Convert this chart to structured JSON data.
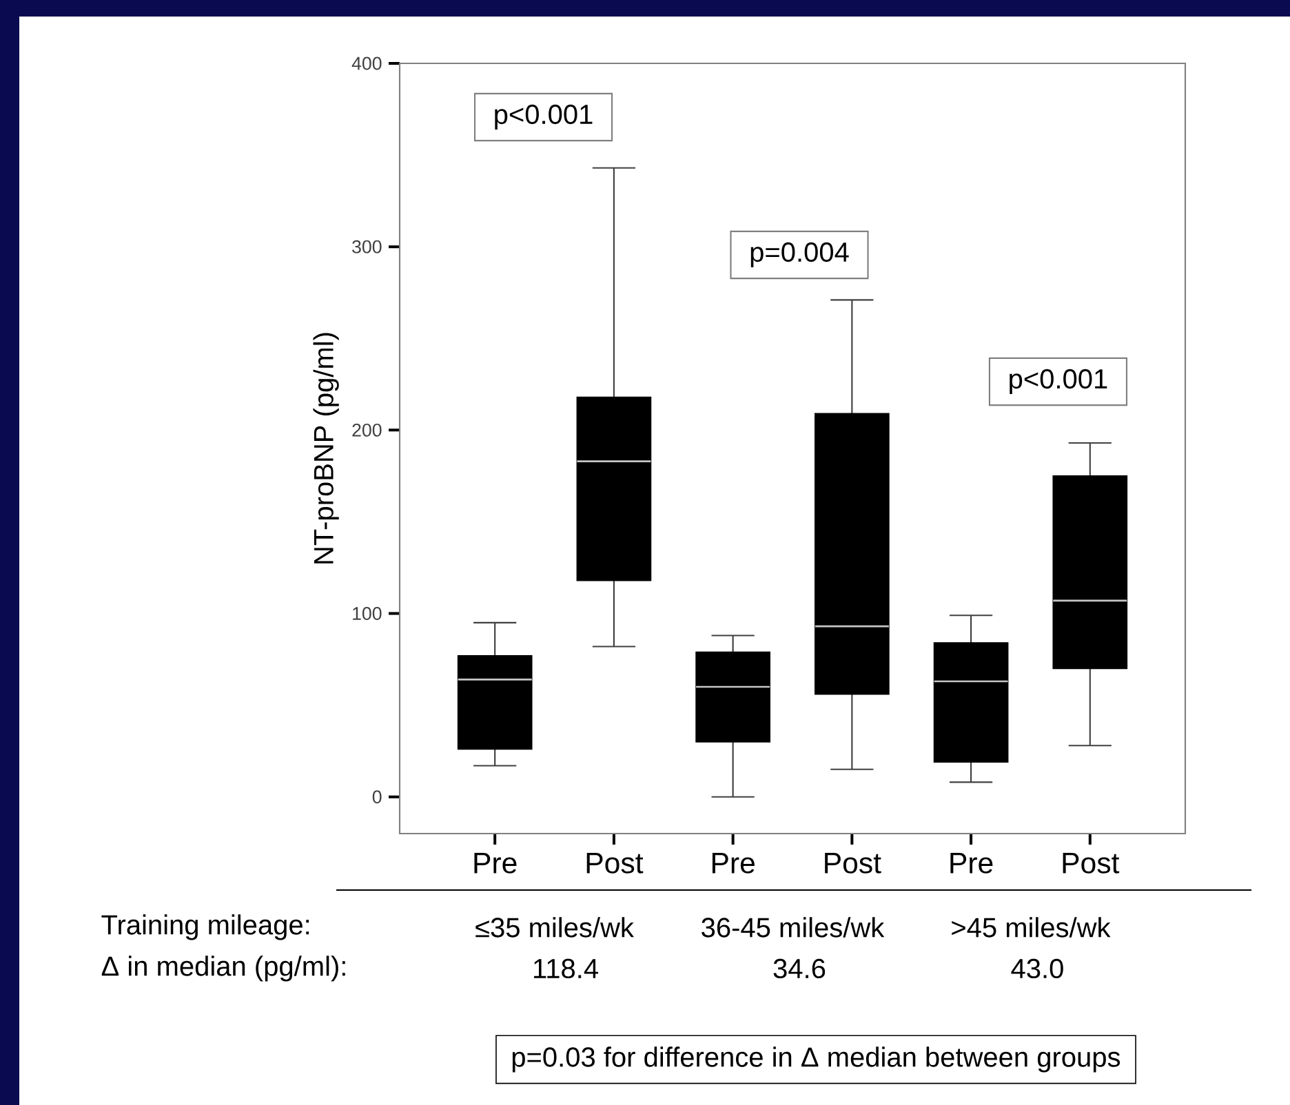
{
  "chart_data": {
    "type": "box",
    "categories": [
      "Pre",
      "Post",
      "Pre",
      "Post",
      "Pre",
      "Post"
    ],
    "boxes": [
      {
        "low": 17,
        "q1": 26,
        "median": 64,
        "q3": 77,
        "high": 95
      },
      {
        "low": 82,
        "q1": 118,
        "median": 183,
        "q3": 218,
        "high": 343
      },
      {
        "low": 0,
        "q1": 30,
        "median": 60,
        "q3": 79,
        "high": 88
      },
      {
        "low": 15,
        "q1": 56,
        "median": 93,
        "q3": 209,
        "high": 271
      },
      {
        "low": 8,
        "q1": 19,
        "median": 63,
        "q3": 84,
        "high": 99
      },
      {
        "low": 28,
        "q1": 70,
        "median": 107,
        "q3": 175,
        "high": 193
      }
    ],
    "color": "#000000",
    "ylabel": "NT-proBNP (pg/ml)",
    "ylim": [
      -20,
      400
    ],
    "yticks": [
      0,
      100,
      200,
      300,
      400
    ],
    "annotations": [
      "p<0.001",
      "p=0.004",
      "p<0.001",
      "Training mileage:",
      "≤35 miles/wk",
      "36-45 miles/wk",
      ">45 miles/wk",
      "Δ in median (pg/ml):",
      "118.4",
      "34.6",
      "43.0",
      "p=0.03 for difference in Δ median between groups"
    ]
  }
}
